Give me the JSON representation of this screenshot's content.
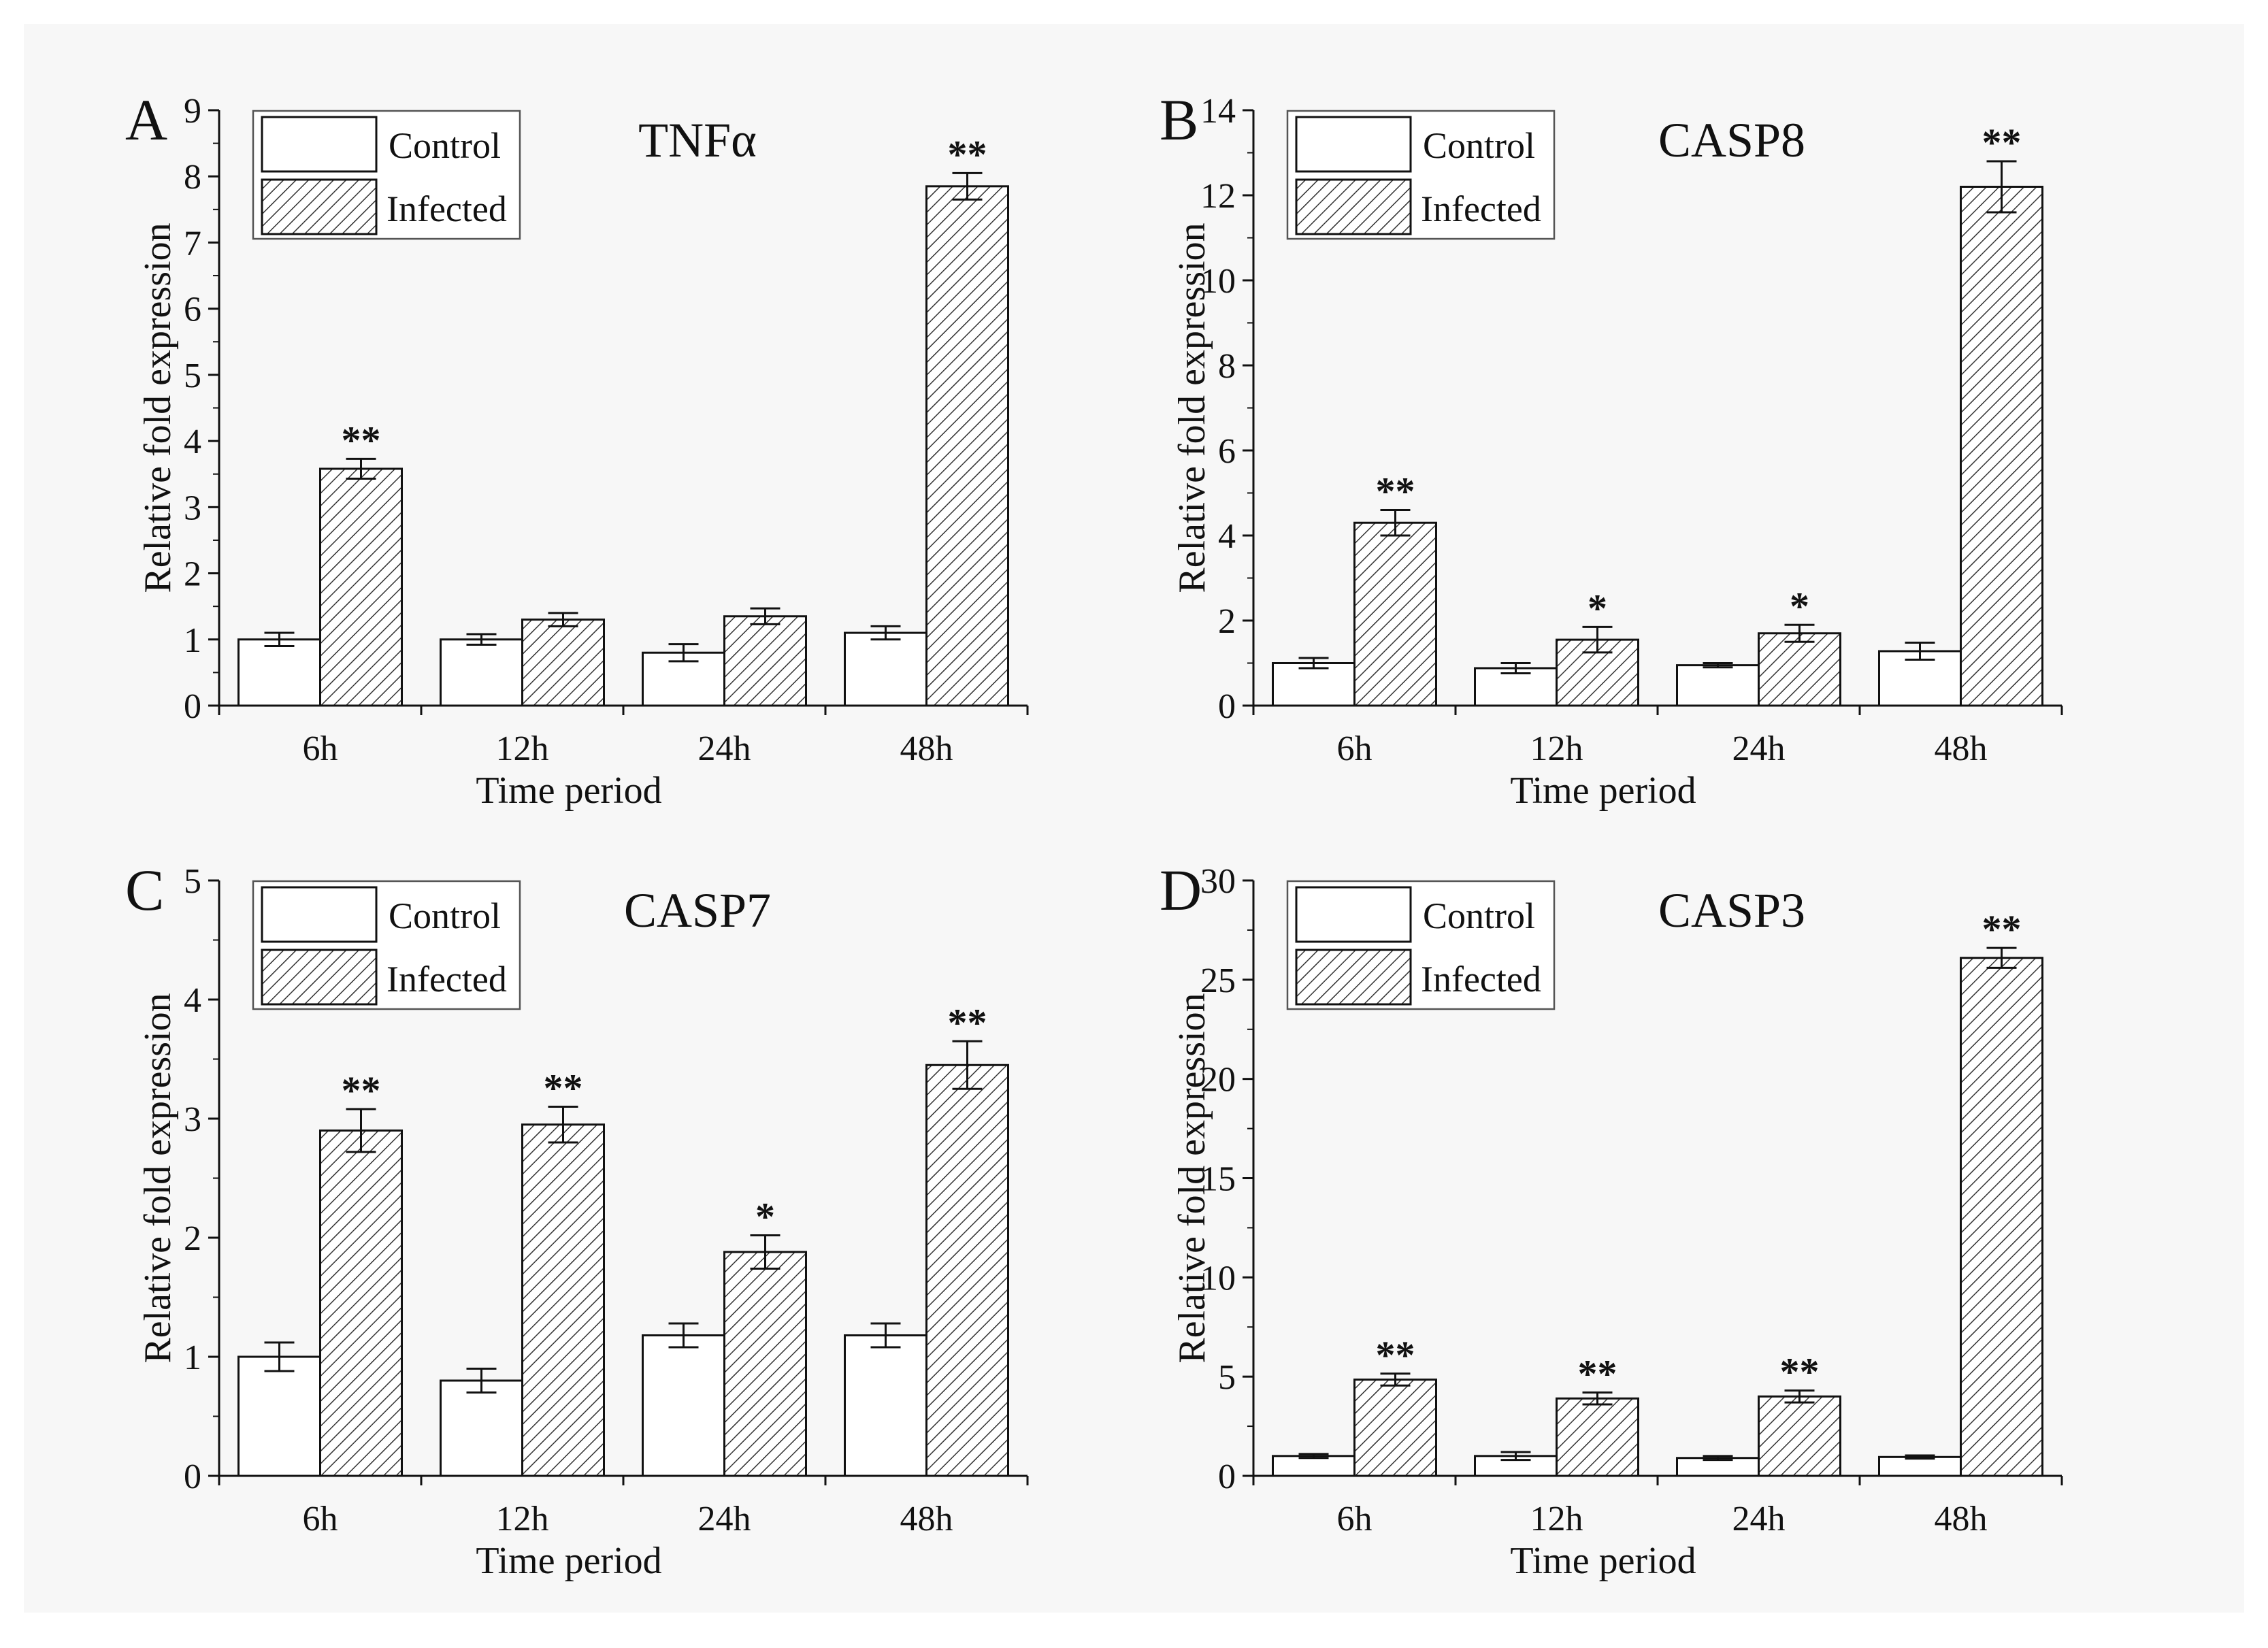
{
  "figure": {
    "background": "#f7f7f7"
  },
  "legend": {
    "control_label": "Control",
    "infected_label": "Infected"
  },
  "chart_data": [
    {
      "panel": "A",
      "type": "bar",
      "title": "TNFα",
      "xlabel": "Time period",
      "ylabel": "Relative fold expression",
      "categories": [
        "6h",
        "12h",
        "24h",
        "48h"
      ],
      "ylim": [
        0,
        9
      ],
      "yticks": [
        "0",
        "1",
        "2",
        "3",
        "4",
        "5",
        "6",
        "7",
        "8",
        "9"
      ],
      "series": [
        {
          "name": "Control",
          "values": [
            1.0,
            1.0,
            0.8,
            1.1
          ],
          "errors": [
            0.1,
            0.08,
            0.13,
            0.1
          ]
        },
        {
          "name": "Infected",
          "values": [
            3.58,
            1.3,
            1.35,
            7.85
          ],
          "errors": [
            0.15,
            0.1,
            0.12,
            0.2
          ]
        }
      ],
      "significance": [
        "**",
        "",
        "",
        "**"
      ],
      "legend_position": "top-left"
    },
    {
      "panel": "B",
      "type": "bar",
      "title": "CASP8",
      "xlabel": "Time period",
      "ylabel": "Relative fold expression",
      "categories": [
        "6h",
        "12h",
        "24h",
        "48h"
      ],
      "ylim": [
        0,
        14
      ],
      "yticks": [
        "0",
        "2",
        "4",
        "6",
        "8",
        "10",
        "12",
        "14"
      ],
      "series": [
        {
          "name": "Control",
          "values": [
            1.0,
            0.88,
            0.95,
            1.28
          ],
          "errors": [
            0.12,
            0.12,
            0.05,
            0.2
          ]
        },
        {
          "name": "Infected",
          "values": [
            4.3,
            1.55,
            1.7,
            12.2
          ],
          "errors": [
            0.3,
            0.3,
            0.2,
            0.6
          ]
        }
      ],
      "significance": [
        "**",
        "*",
        "*",
        "**"
      ],
      "legend_position": "top-left"
    },
    {
      "panel": "C",
      "type": "bar",
      "title": "CASP7",
      "xlabel": "Time period",
      "ylabel": "Relative fold expression",
      "categories": [
        "6h",
        "12h",
        "24h",
        "48h"
      ],
      "ylim": [
        0,
        5
      ],
      "yticks": [
        "0",
        "1",
        "2",
        "3",
        "4",
        "5"
      ],
      "series": [
        {
          "name": "Control",
          "values": [
            1.0,
            0.8,
            1.18,
            1.18
          ],
          "errors": [
            0.12,
            0.1,
            0.1,
            0.1
          ]
        },
        {
          "name": "Infected",
          "values": [
            2.9,
            2.95,
            1.88,
            3.45
          ],
          "errors": [
            0.18,
            0.15,
            0.14,
            0.2
          ]
        }
      ],
      "significance": [
        "**",
        "**",
        "*",
        "**"
      ],
      "legend_position": "top-left"
    },
    {
      "panel": "D",
      "type": "bar",
      "title": "CASP3",
      "xlabel": "Time period",
      "ylabel": "Relative fold expression",
      "categories": [
        "6h",
        "12h",
        "24h",
        "48h"
      ],
      "ylim": [
        0,
        30
      ],
      "yticks": [
        "0",
        "5",
        "10",
        "15",
        "20",
        "25",
        "30"
      ],
      "series": [
        {
          "name": "Control",
          "values": [
            1.0,
            1.0,
            0.9,
            0.95
          ],
          "errors": [
            0.1,
            0.2,
            0.1,
            0.08
          ]
        },
        {
          "name": "Infected",
          "values": [
            4.85,
            3.9,
            4.0,
            26.1
          ],
          "errors": [
            0.3,
            0.3,
            0.3,
            0.5
          ]
        }
      ],
      "significance": [
        "**",
        "**",
        "**",
        "**"
      ],
      "legend_position": "top-left"
    }
  ]
}
